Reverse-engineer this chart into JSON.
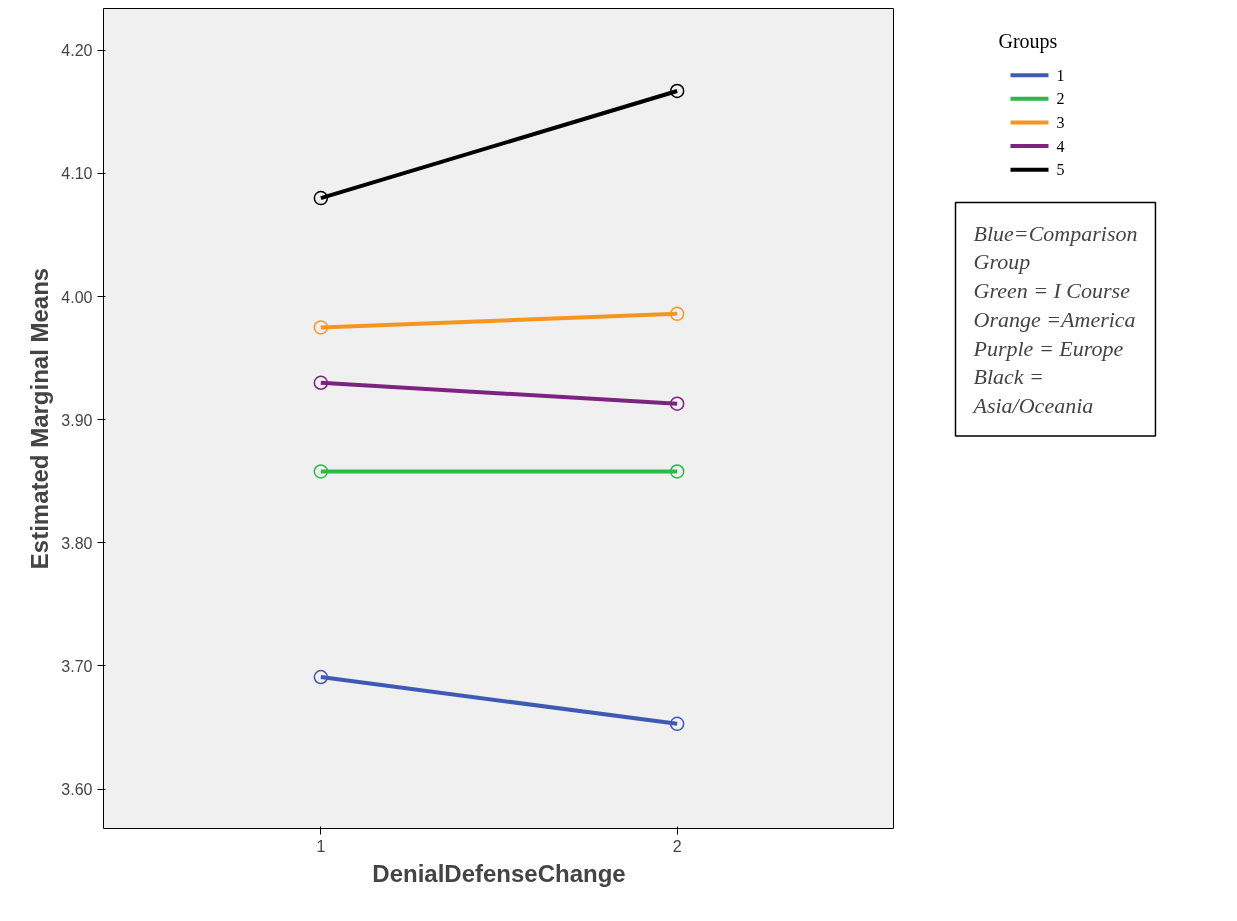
{
  "chart_data": {
    "type": "line",
    "xlabel": "DenialDefenseChange",
    "ylabel": "Estimated Marginal Means",
    "legend_title": "Groups",
    "x": [
      1,
      2
    ],
    "series": [
      {
        "name": "1",
        "color": "#3f5ab5",
        "values": [
          3.691,
          3.653
        ]
      },
      {
        "name": "2",
        "color": "#2db84a",
        "values": [
          3.858,
          3.858
        ]
      },
      {
        "name": "3",
        "color": "#f7961e",
        "values": [
          3.975,
          3.986
        ]
      },
      {
        "name": "4",
        "color": "#7c2480",
        "values": [
          3.93,
          3.913
        ]
      },
      {
        "name": "5",
        "color": "#000000",
        "values": [
          4.08,
          4.167
        ]
      }
    ],
    "xlim": [
      0.39,
      2.61
    ],
    "xticks": [
      1,
      2
    ],
    "ylim": [
      3.568,
      4.234
    ],
    "yticks": [
      {
        "value": 3.6,
        "label": "3.60"
      },
      {
        "value": 3.7,
        "label": "3.70"
      },
      {
        "value": 3.8,
        "label": "3.80"
      },
      {
        "value": 3.9,
        "label": "3.90"
      },
      {
        "value": 4.0,
        "label": "4.00"
      },
      {
        "value": 4.1,
        "label": "4.10"
      },
      {
        "value": 4.2,
        "label": "4.20"
      }
    ],
    "annotations": [
      "Blue=Comparison Group",
      "Green = I Course",
      "Orange =America",
      "Purple = Europe",
      "Black = Asia/Oceania"
    ],
    "grid": false,
    "legend": "top right",
    "marker": "circle",
    "line_style": "solid"
  }
}
